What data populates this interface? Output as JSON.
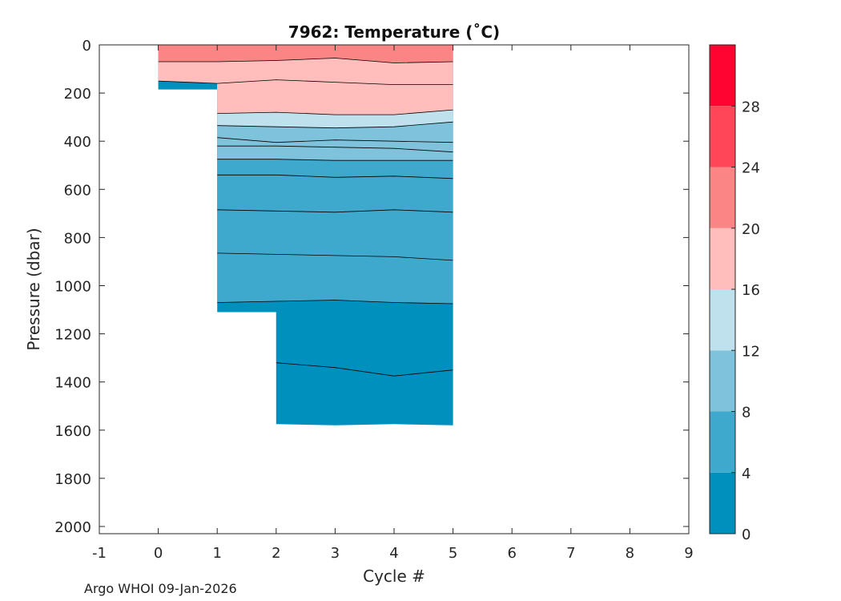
{
  "footer": {
    "credit": "Argo WHOI 09-Jan-2026"
  },
  "chart_data": {
    "type": "filled-contour",
    "title": "7962:  Temperature (˚C)",
    "xlabel": "Cycle #",
    "ylabel": "Pressure (dbar)",
    "xlim": [
      -1,
      9
    ],
    "ylim": [
      2030,
      0
    ],
    "y_reversed": true,
    "grid": false,
    "xticks": [
      "-1",
      "0",
      "1",
      "2",
      "3",
      "4",
      "5",
      "6",
      "7",
      "8",
      "9"
    ],
    "yticks": [
      "0",
      "200",
      "400",
      "600",
      "800",
      "1000",
      "1200",
      "1400",
      "1600",
      "1800",
      "2000"
    ],
    "profile_max_pressure": [
      {
        "cycle": 0,
        "pressure": 185
      },
      {
        "cycle": 1,
        "pressure": 1110
      },
      {
        "cycle": 2,
        "pressure": 1575
      },
      {
        "cycle": 3,
        "pressure": 1580
      },
      {
        "cycle": 4,
        "pressure": 1575
      },
      {
        "cycle": 5,
        "pressure": 1580
      }
    ],
    "isotherms": [
      {
        "temp": 20,
        "cycles": [
          0,
          1,
          2,
          3,
          4,
          5
        ],
        "pressure": [
          70,
          70,
          65,
          55,
          75,
          70
        ]
      },
      {
        "temp": 16,
        "cycles": [
          0,
          1,
          2,
          3,
          4,
          5
        ],
        "pressure": [
          150,
          160,
          145,
          155,
          165,
          165
        ]
      },
      {
        "temp": 14,
        "cycles": [
          1,
          2,
          3,
          4,
          5
        ],
        "pressure": [
          285,
          280,
          290,
          290,
          270
        ]
      },
      {
        "temp": 12,
        "cycles": [
          1,
          2,
          3,
          4,
          5
        ],
        "pressure": [
          335,
          340,
          345,
          340,
          320
        ]
      },
      {
        "temp": 10,
        "cycles": [
          1,
          2,
          3,
          4,
          5
        ],
        "pressure": [
          385,
          405,
          395,
          400,
          405
        ]
      },
      {
        "temp": 9,
        "cycles": [
          1,
          2,
          3,
          4,
          5
        ],
        "pressure": [
          420,
          420,
          425,
          430,
          445
        ]
      },
      {
        "temp": 8,
        "cycles": [
          1,
          2,
          3,
          4,
          5
        ],
        "pressure": [
          475,
          475,
          480,
          480,
          480
        ]
      },
      {
        "temp": 7,
        "cycles": [
          1,
          2,
          3,
          4,
          5
        ],
        "pressure": [
          540,
          540,
          550,
          545,
          555
        ]
      },
      {
        "temp": 6,
        "cycles": [
          1,
          2,
          3,
          4,
          5
        ],
        "pressure": [
          685,
          690,
          695,
          685,
          695
        ]
      },
      {
        "temp": 5,
        "cycles": [
          1,
          2,
          3,
          4,
          5
        ],
        "pressure": [
          865,
          870,
          875,
          880,
          895
        ]
      },
      {
        "temp": 4,
        "cycles": [
          1,
          2,
          3,
          4,
          5
        ],
        "pressure": [
          1070,
          1065,
          1060,
          1070,
          1075
        ]
      },
      {
        "temp": 3,
        "cycles": [
          2,
          3,
          4,
          5
        ],
        "pressure": [
          1320,
          1340,
          1375,
          1350
        ]
      }
    ],
    "bands": [
      {
        "range": [
          20,
          24
        ],
        "color": "#fb8585"
      },
      {
        "range": [
          16,
          20
        ],
        "color": "#ffbdbb"
      },
      {
        "range": [
          12,
          16
        ],
        "color": "#bfe1ed"
      },
      {
        "range": [
          8,
          12
        ],
        "color": "#7fc2dc"
      },
      {
        "range": [
          4,
          8
        ],
        "color": "#3fa8cd"
      },
      {
        "range": [
          0,
          4
        ],
        "color": "#0090be"
      }
    ],
    "colorbar": {
      "range": [
        0,
        32
      ],
      "ticks": [
        "0",
        "4",
        "8",
        "12",
        "16",
        "20",
        "24",
        "28"
      ],
      "levels": [
        {
          "from": 0,
          "to": 4,
          "color": "#0090be"
        },
        {
          "from": 4,
          "to": 8,
          "color": "#3fa8cd"
        },
        {
          "from": 8,
          "to": 12,
          "color": "#7fc2dc"
        },
        {
          "from": 12,
          "to": 16,
          "color": "#bfe1ed"
        },
        {
          "from": 16,
          "to": 20,
          "color": "#ffbdbb"
        },
        {
          "from": 20,
          "to": 24,
          "color": "#fb8585"
        },
        {
          "from": 24,
          "to": 28,
          "color": "#ff4659"
        },
        {
          "from": 28,
          "to": 32,
          "color": "#ff0430"
        }
      ]
    }
  }
}
